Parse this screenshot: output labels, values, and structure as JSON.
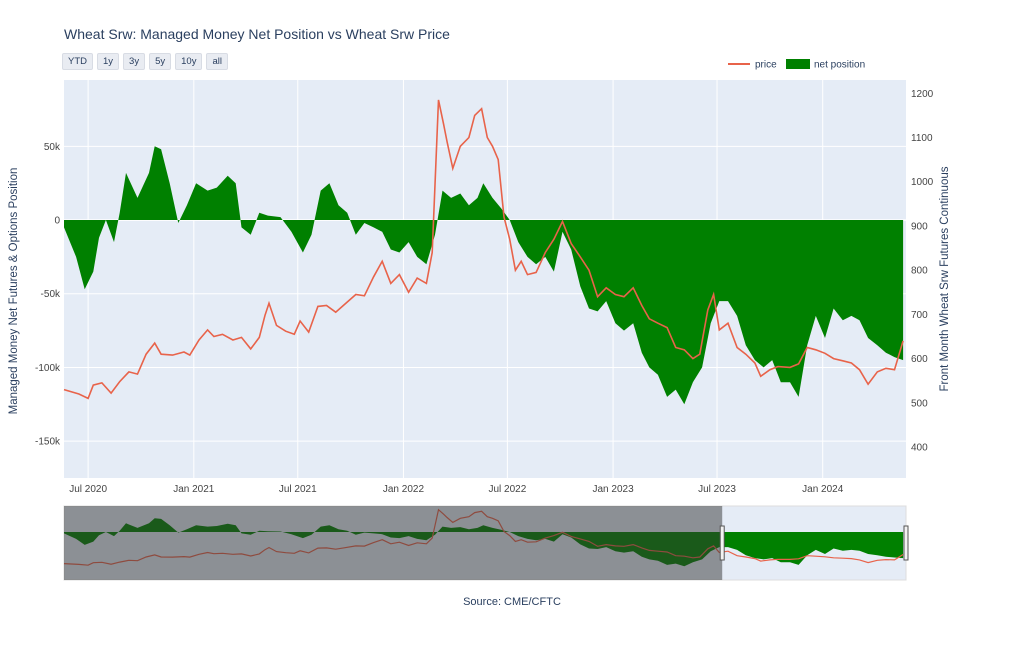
{
  "title": "Wheat Srw: Managed Money Net Position vs Wheat Srw Price",
  "range_buttons": [
    "YTD",
    "1y",
    "3y",
    "5y",
    "10y",
    "all"
  ],
  "source": "Source: CME/CFTC",
  "chart_data": {
    "type": "line",
    "title": "Wheat Srw: Managed Money Net Position vs Wheat Srw Price",
    "legend_position": "top-right",
    "grid": true,
    "x_range": [
      "2020-05-20",
      "2024-05-25"
    ],
    "x_ticks": [
      "Jul 2020",
      "Jan 2021",
      "Jul 2021",
      "Jan 2022",
      "Jul 2022",
      "Jan 2023",
      "Jul 2023",
      "Jan 2024"
    ],
    "y_left": {
      "label": "Managed Money Net Futures & Options Position",
      "range": [
        -175000,
        95000
      ],
      "ticks": [
        -150000,
        -100000,
        -50000,
        0,
        50000
      ],
      "tick_labels": [
        "-150k",
        "-100k",
        "-50k",
        "0",
        "50k"
      ]
    },
    "y_right": {
      "label": "Front Month Wheat Srw Futures Continuous",
      "range": [
        330,
        1230
      ],
      "ticks": [
        400,
        500,
        600,
        700,
        800,
        900,
        1000,
        1100,
        1200
      ]
    },
    "series": [
      {
        "name": "price",
        "axis": "right",
        "color": "#e8634a",
        "points": [
          [
            "2020-05-20",
            530
          ],
          [
            "2020-06-15",
            520
          ],
          [
            "2020-07-01",
            510
          ],
          [
            "2020-07-10",
            540
          ],
          [
            "2020-07-25",
            545
          ],
          [
            "2020-08-10",
            522
          ],
          [
            "2020-08-25",
            548
          ],
          [
            "2020-09-10",
            570
          ],
          [
            "2020-09-25",
            565
          ],
          [
            "2020-10-10",
            610
          ],
          [
            "2020-10-25",
            635
          ],
          [
            "2020-11-05",
            610
          ],
          [
            "2020-11-25",
            608
          ],
          [
            "2020-12-15",
            615
          ],
          [
            "2020-12-25",
            608
          ],
          [
            "2021-01-10",
            642
          ],
          [
            "2021-01-25",
            665
          ],
          [
            "2021-02-05",
            650
          ],
          [
            "2021-02-20",
            655
          ],
          [
            "2021-03-10",
            642
          ],
          [
            "2021-03-25",
            648
          ],
          [
            "2021-04-10",
            622
          ],
          [
            "2021-04-25",
            648
          ],
          [
            "2021-05-05",
            698
          ],
          [
            "2021-05-12",
            725
          ],
          [
            "2021-05-25",
            675
          ],
          [
            "2021-06-10",
            662
          ],
          [
            "2021-06-25",
            655
          ],
          [
            "2021-07-05",
            685
          ],
          [
            "2021-07-20",
            660
          ],
          [
            "2021-08-05",
            718
          ],
          [
            "2021-08-20",
            720
          ],
          [
            "2021-09-05",
            705
          ],
          [
            "2021-09-20",
            722
          ],
          [
            "2021-10-10",
            745
          ],
          [
            "2021-10-25",
            742
          ],
          [
            "2021-11-10",
            785
          ],
          [
            "2021-11-25",
            820
          ],
          [
            "2021-12-10",
            770
          ],
          [
            "2021-12-25",
            790
          ],
          [
            "2022-01-10",
            750
          ],
          [
            "2022-01-25",
            782
          ],
          [
            "2022-02-10",
            770
          ],
          [
            "2022-02-20",
            840
          ],
          [
            "2022-03-03",
            1185
          ],
          [
            "2022-03-12",
            1130
          ],
          [
            "2022-03-18",
            1090
          ],
          [
            "2022-03-28",
            1030
          ],
          [
            "2022-04-10",
            1080
          ],
          [
            "2022-04-25",
            1100
          ],
          [
            "2022-05-05",
            1150
          ],
          [
            "2022-05-17",
            1165
          ],
          [
            "2022-05-27",
            1100
          ],
          [
            "2022-06-05",
            1080
          ],
          [
            "2022-06-15",
            1050
          ],
          [
            "2022-06-25",
            920
          ],
          [
            "2022-07-05",
            870
          ],
          [
            "2022-07-15",
            800
          ],
          [
            "2022-07-25",
            820
          ],
          [
            "2022-08-05",
            790
          ],
          [
            "2022-08-20",
            795
          ],
          [
            "2022-09-05",
            840
          ],
          [
            "2022-09-20",
            870
          ],
          [
            "2022-10-05",
            910
          ],
          [
            "2022-10-20",
            860
          ],
          [
            "2022-11-05",
            830
          ],
          [
            "2022-11-20",
            800
          ],
          [
            "2022-12-05",
            740
          ],
          [
            "2022-12-20",
            760
          ],
          [
            "2023-01-05",
            745
          ],
          [
            "2023-01-20",
            740
          ],
          [
            "2023-02-05",
            760
          ],
          [
            "2023-02-20",
            720
          ],
          [
            "2023-03-05",
            690
          ],
          [
            "2023-03-20",
            680
          ],
          [
            "2023-04-05",
            670
          ],
          [
            "2023-04-20",
            625
          ],
          [
            "2023-05-05",
            620
          ],
          [
            "2023-05-20",
            600
          ],
          [
            "2023-06-01",
            610
          ],
          [
            "2023-06-15",
            710
          ],
          [
            "2023-06-25",
            745
          ],
          [
            "2023-07-05",
            665
          ],
          [
            "2023-07-20",
            680
          ],
          [
            "2023-08-05",
            625
          ],
          [
            "2023-08-20",
            610
          ],
          [
            "2023-09-05",
            590
          ],
          [
            "2023-09-15",
            560
          ],
          [
            "2023-10-01",
            575
          ],
          [
            "2023-10-15",
            582
          ],
          [
            "2023-11-05",
            580
          ],
          [
            "2023-11-20",
            588
          ],
          [
            "2023-12-05",
            625
          ],
          [
            "2023-12-20",
            620
          ],
          [
            "2024-01-05",
            612
          ],
          [
            "2024-01-20",
            600
          ],
          [
            "2024-02-05",
            595
          ],
          [
            "2024-02-20",
            590
          ],
          [
            "2024-03-05",
            575
          ],
          [
            "2024-03-20",
            542
          ],
          [
            "2024-04-05",
            570
          ],
          [
            "2024-04-20",
            578
          ],
          [
            "2024-05-05",
            575
          ],
          [
            "2024-05-20",
            640
          ]
        ]
      },
      {
        "name": "net position",
        "axis": "left",
        "type": "area",
        "color": "#008000",
        "points": [
          [
            "2020-05-20",
            -5000
          ],
          [
            "2020-06-10",
            -25000
          ],
          [
            "2020-06-25",
            -47000
          ],
          [
            "2020-07-10",
            -35000
          ],
          [
            "2020-07-20",
            -12000
          ],
          [
            "2020-08-01",
            0
          ],
          [
            "2020-08-15",
            -15000
          ],
          [
            "2020-08-25",
            5000
          ],
          [
            "2020-09-05",
            32000
          ],
          [
            "2020-09-25",
            15000
          ],
          [
            "2020-10-15",
            32000
          ],
          [
            "2020-10-25",
            50000
          ],
          [
            "2020-11-05",
            48000
          ],
          [
            "2020-11-20",
            25000
          ],
          [
            "2020-12-05",
            -2000
          ],
          [
            "2020-12-20",
            10000
          ],
          [
            "2021-01-05",
            25000
          ],
          [
            "2021-01-25",
            20000
          ],
          [
            "2021-02-10",
            22000
          ],
          [
            "2021-03-01",
            30000
          ],
          [
            "2021-03-15",
            25000
          ],
          [
            "2021-03-25",
            -5000
          ],
          [
            "2021-04-10",
            -10000
          ],
          [
            "2021-04-25",
            5000
          ],
          [
            "2021-05-10",
            3000
          ],
          [
            "2021-06-01",
            2000
          ],
          [
            "2021-06-20",
            -8000
          ],
          [
            "2021-07-10",
            -22000
          ],
          [
            "2021-07-25",
            -10000
          ],
          [
            "2021-08-10",
            20000
          ],
          [
            "2021-08-25",
            25000
          ],
          [
            "2021-09-10",
            10000
          ],
          [
            "2021-09-25",
            5000
          ],
          [
            "2021-10-10",
            -10000
          ],
          [
            "2021-10-25",
            -2000
          ],
          [
            "2021-11-10",
            -5000
          ],
          [
            "2021-11-25",
            -8000
          ],
          [
            "2021-12-10",
            -20000
          ],
          [
            "2021-12-25",
            -22000
          ],
          [
            "2022-01-10",
            -15000
          ],
          [
            "2022-01-25",
            -25000
          ],
          [
            "2022-02-10",
            -30000
          ],
          [
            "2022-02-25",
            -10000
          ],
          [
            "2022-03-10",
            20000
          ],
          [
            "2022-03-25",
            15000
          ],
          [
            "2022-04-10",
            18000
          ],
          [
            "2022-04-25",
            10000
          ],
          [
            "2022-05-10",
            15000
          ],
          [
            "2022-05-20",
            25000
          ],
          [
            "2022-06-05",
            15000
          ],
          [
            "2022-06-20",
            8000
          ],
          [
            "2022-07-05",
            0
          ],
          [
            "2022-07-20",
            -15000
          ],
          [
            "2022-08-05",
            -25000
          ],
          [
            "2022-08-20",
            -30000
          ],
          [
            "2022-09-05",
            -25000
          ],
          [
            "2022-09-20",
            -35000
          ],
          [
            "2022-10-05",
            -8000
          ],
          [
            "2022-10-20",
            -20000
          ],
          [
            "2022-11-05",
            -45000
          ],
          [
            "2022-11-20",
            -60000
          ],
          [
            "2022-12-05",
            -62000
          ],
          [
            "2022-12-20",
            -55000
          ],
          [
            "2023-01-05",
            -70000
          ],
          [
            "2023-01-20",
            -75000
          ],
          [
            "2023-02-05",
            -70000
          ],
          [
            "2023-02-20",
            -90000
          ],
          [
            "2023-03-05",
            -100000
          ],
          [
            "2023-03-20",
            -105000
          ],
          [
            "2023-04-05",
            -120000
          ],
          [
            "2023-04-20",
            -115000
          ],
          [
            "2023-05-05",
            -125000
          ],
          [
            "2023-05-20",
            -110000
          ],
          [
            "2023-06-05",
            -100000
          ],
          [
            "2023-06-20",
            -70000
          ],
          [
            "2023-07-05",
            -55000
          ],
          [
            "2023-07-20",
            -55000
          ],
          [
            "2023-08-05",
            -65000
          ],
          [
            "2023-08-20",
            -85000
          ],
          [
            "2023-09-05",
            -95000
          ],
          [
            "2023-09-20",
            -100000
          ],
          [
            "2023-10-05",
            -95000
          ],
          [
            "2023-10-20",
            -110000
          ],
          [
            "2023-11-05",
            -110000
          ],
          [
            "2023-11-20",
            -120000
          ],
          [
            "2023-12-05",
            -85000
          ],
          [
            "2023-12-20",
            -65000
          ],
          [
            "2024-01-05",
            -80000
          ],
          [
            "2024-01-20",
            -60000
          ],
          [
            "2024-02-05",
            -68000
          ],
          [
            "2024-02-20",
            -65000
          ],
          [
            "2024-03-05",
            -68000
          ],
          [
            "2024-03-20",
            -80000
          ],
          [
            "2024-04-05",
            -85000
          ],
          [
            "2024-04-20",
            -90000
          ],
          [
            "2024-05-05",
            -93000
          ],
          [
            "2024-05-20",
            -95000
          ]
        ]
      }
    ]
  }
}
